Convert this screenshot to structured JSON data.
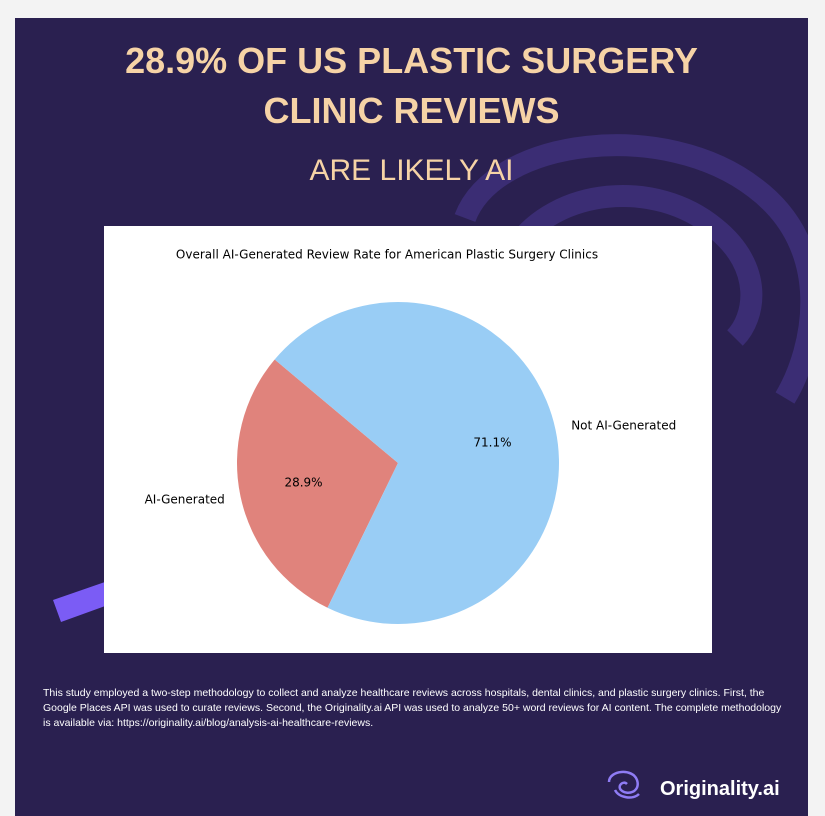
{
  "header": {
    "title_line1": "28.9% OF US PLASTIC SURGERY",
    "title_line2": "CLINIC REVIEWS",
    "subtitle": "ARE LIKELY AI"
  },
  "chart_data": {
    "type": "pie",
    "title": "Overall AI-Generated Review Rate for American Plastic Surgery Clinics",
    "categories": [
      "AI-Generated",
      "Not AI-Generated"
    ],
    "values": [
      28.9,
      71.1
    ],
    "value_labels": [
      "28.9%",
      "71.1%"
    ],
    "colors": [
      "#e0837c",
      "#99cdf5"
    ]
  },
  "footer": {
    "methodology": "This study employed a two-step methodology to collect and analyze healthcare reviews across hospitals, dental clinics, and plastic surgery clinics. First, the Google Places API was used to curate reviews. Second, the Originality.ai API was used to analyze 50+ word reviews for AI content. The complete methodology is available via: https://originality.ai/blog/analysis-ai-healthcare-reviews.",
    "brand": "Originality.ai"
  }
}
